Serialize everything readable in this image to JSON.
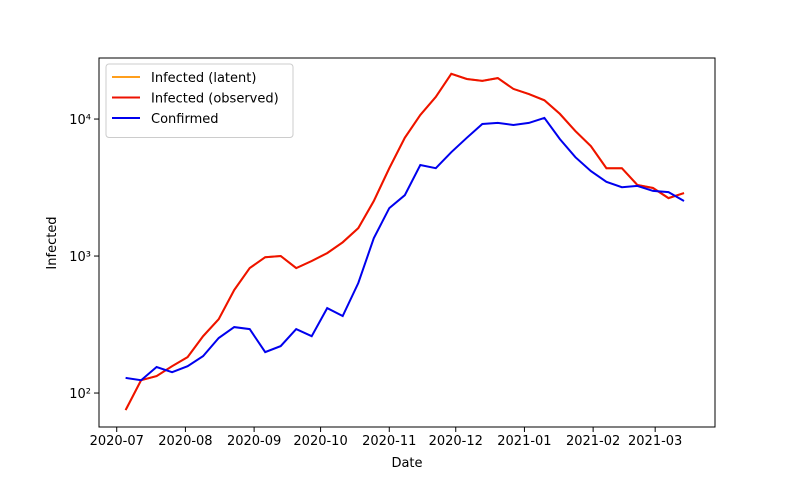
{
  "chart_data": {
    "type": "line",
    "xlabel": "Date",
    "ylabel": "Infected",
    "yscale": "log",
    "legend": "upper left",
    "x": [
      "2020-07-05",
      "2020-07-12",
      "2020-07-19",
      "2020-07-26",
      "2020-08-02",
      "2020-08-09",
      "2020-08-16",
      "2020-08-23",
      "2020-08-30",
      "2020-09-06",
      "2020-09-13",
      "2020-09-20",
      "2020-09-27",
      "2020-10-04",
      "2020-10-11",
      "2020-10-18",
      "2020-10-25",
      "2020-11-01",
      "2020-11-08",
      "2020-11-15",
      "2020-11-22",
      "2020-11-29",
      "2020-12-06",
      "2020-12-13",
      "2020-12-20",
      "2020-12-27",
      "2021-01-03",
      "2021-01-10",
      "2021-01-17",
      "2021-01-24",
      "2021-01-31",
      "2021-02-07",
      "2021-02-14",
      "2021-02-21",
      "2021-02-28",
      "2021-03-07",
      "2021-03-14"
    ],
    "series": [
      {
        "name": "Infected (latent)",
        "color": "#ff9f1c",
        "values": [
          75,
          124,
          133,
          157,
          183,
          260,
          346,
          565,
          816,
          980,
          1000,
          816,
          920,
          1050,
          1260,
          1600,
          2520,
          4380,
          7300,
          10700,
          14500,
          21400,
          19600,
          19000,
          19900,
          16600,
          15200,
          13700,
          10900,
          8170,
          6340,
          4380,
          4380,
          3300,
          3140,
          2650,
          2880
        ]
      },
      {
        "name": "Infected (observed)",
        "color": "#ee1100",
        "values": [
          75,
          124,
          133,
          157,
          183,
          260,
          346,
          565,
          816,
          980,
          1000,
          816,
          920,
          1050,
          1260,
          1600,
          2520,
          4380,
          7300,
          10700,
          14500,
          21400,
          19600,
          19000,
          19900,
          16600,
          15200,
          13700,
          10900,
          8170,
          6340,
          4380,
          4380,
          3300,
          3140,
          2650,
          2880
        ]
      },
      {
        "name": "Confirmed",
        "color": "#0000ee",
        "values": [
          129,
          124,
          155,
          142,
          157,
          186,
          252,
          303,
          293,
          199,
          220,
          293,
          260,
          417,
          365,
          636,
          1350,
          2240,
          2780,
          4620,
          4380,
          5730,
          7300,
          9200,
          9370,
          9040,
          9370,
          10200,
          7140,
          5270,
          4170,
          3480,
          3180,
          3250,
          2990,
          2930,
          2520
        ]
      }
    ],
    "xlim": [
      "2020-06-23",
      "2021-03-28"
    ],
    "xticks": [
      "2020-07",
      "2020-08",
      "2020-09",
      "2020-10",
      "2020-11",
      "2020-12",
      "2021-01",
      "2021-02",
      "2021-03"
    ],
    "ylim": [
      56.5,
      27900
    ],
    "yticks": [
      {
        "value": 100,
        "label": "10²"
      },
      {
        "value": 1000,
        "label": "10³"
      },
      {
        "value": 10000,
        "label": "10⁴"
      }
    ]
  }
}
